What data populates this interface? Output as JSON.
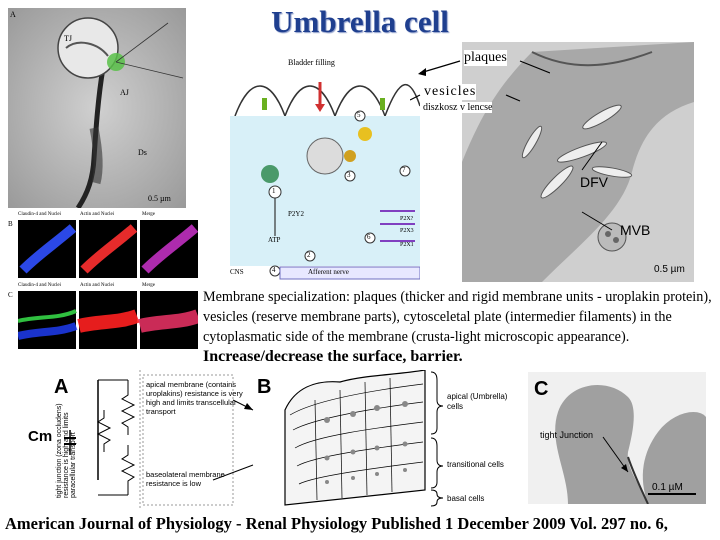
{
  "title": "Umbrella cell",
  "callouts": {
    "plaques": "plaques",
    "vesicles": "vesicles",
    "hungarian": "diszkosz v lencse"
  },
  "micrograph_left": {
    "panel_letter": "A",
    "tj": "TJ",
    "aj": "AJ",
    "ds": "Ds",
    "scale": "0.5 µm",
    "row_b": {
      "letter": "B",
      "cols": [
        "Claudin-4 and Nuclei",
        "Actin and Nuclei",
        "Merge"
      ]
    },
    "row_c": {
      "letter": "C",
      "cols": [
        "Claudin-4 and Nuclei",
        "Actin and Nuclei",
        "Merge"
      ]
    }
  },
  "schematic_top": {
    "bladder_filling": "Bladder filling",
    "p2y2": "P2Y2",
    "atp": "ATP",
    "cns": "CNS",
    "afferent": "Afferent nerve",
    "p2x": [
      "P2X?",
      "P2X3",
      "P2X1"
    ],
    "numbers": [
      "1",
      "2",
      "3",
      "4",
      "5",
      "6",
      "7"
    ]
  },
  "micrograph_right": {
    "dfv": "DFV",
    "mvb": "MVB",
    "scale": "0.5 µm"
  },
  "description": {
    "main": "Membrane specialization: plaques (thicker and rigid membrane units - uroplakin protein), vesicles (reserve membrane parts), cytosceletal plate (intermedier filaments) in the cytoplasmatic side of the membrane (crusta-light microscopic appearance).",
    "emphasis": "Increase/decrease the surface, barrier."
  },
  "bottom_figure": {
    "a": "A",
    "b": "B",
    "c": "C",
    "cm": "Cm",
    "tight_junction_vertical": "tight junction (zona occludens) resistance is high and limits paracellular transport",
    "apical_membrane": "apical membrane (contains uroplakins) resistance is very high and limits transcellular transport",
    "basolateral": "baseolateral membrane resistance is low",
    "apical_cells": "apical (Umbrella) cells",
    "transitional_cells": "transitional cells",
    "basal_cells": "basal cells",
    "tight_junction": "tight Junction",
    "scale": "0.1 µM"
  },
  "footer": "American Journal of Physiology - Renal Physiology Published 1 December 2009 Vol. 297 no. 6,"
}
